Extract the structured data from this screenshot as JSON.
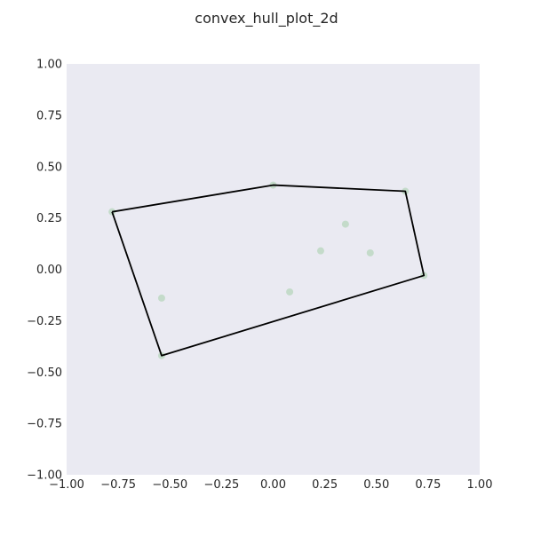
{
  "chart_data": {
    "type": "scatter",
    "title": "convex_hull_plot_2d",
    "xlabel": "",
    "ylabel": "",
    "xlim": [
      -1.0,
      1.0
    ],
    "ylim": [
      -1.0,
      1.0
    ],
    "grid": false,
    "x_ticks": [
      -1.0,
      -0.75,
      -0.5,
      -0.25,
      0.0,
      0.25,
      0.5,
      0.75,
      1.0
    ],
    "x_tick_labels": [
      "−1.00",
      "−0.75",
      "−0.50",
      "−0.25",
      "0.00",
      "0.25",
      "0.50",
      "0.75",
      "1.00"
    ],
    "y_ticks": [
      1.0,
      0.75,
      0.5,
      0.25,
      0.0,
      -0.25,
      -0.5,
      -0.75,
      -1.0
    ],
    "y_tick_labels": [
      "1.00",
      "0.75",
      "0.50",
      "0.25",
      "0.00",
      "−0.25",
      "−0.50",
      "−0.75",
      "−1.00"
    ],
    "points": {
      "x": [
        -0.78,
        0.0,
        0.64,
        0.73,
        -0.54,
        -0.54,
        0.08,
        0.23,
        0.35,
        0.47
      ],
      "y": [
        0.28,
        0.41,
        0.38,
        -0.03,
        -0.42,
        -0.14,
        -0.11,
        0.09,
        0.22,
        0.08
      ],
      "color": "#2ca02c"
    },
    "hull": {
      "x": [
        -0.78,
        0.0,
        0.64,
        0.73,
        -0.54,
        -0.78
      ],
      "y": [
        0.28,
        0.41,
        0.38,
        -0.03,
        -0.42,
        0.28
      ],
      "color": "#000000"
    },
    "plot_background": "#eaeaf2"
  }
}
